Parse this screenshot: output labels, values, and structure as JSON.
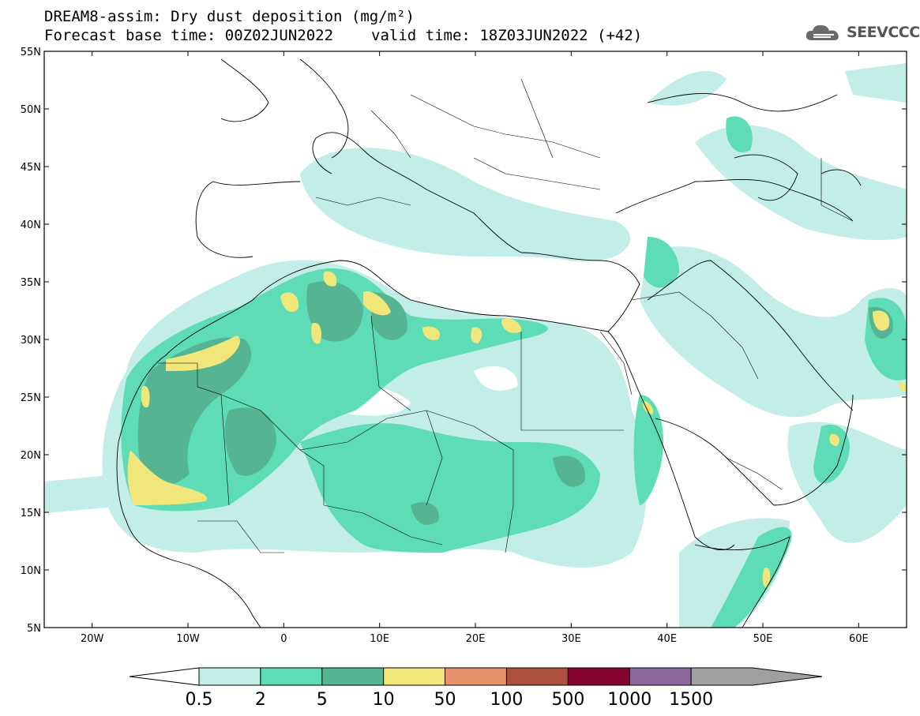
{
  "header": {
    "title_line1": "DREAM8-assim: Dry dust deposition (mg/m²)",
    "base_label": "Forecast base time: 00Z02JUN2022",
    "valid_label": "valid time: 18Z03JUN2022 (+42)"
  },
  "logo": {
    "text": "SEEVCCC",
    "icon": "cloud-logo-icon"
  },
  "map": {
    "projection": "lat-lon",
    "lon_range": [
      -25,
      65
    ],
    "lat_range": [
      5,
      55
    ],
    "lat_ticks": [
      "55N",
      "50N",
      "45N",
      "40N",
      "35N",
      "30N",
      "25N",
      "20N",
      "15N",
      "10N",
      "5N"
    ],
    "lon_ticks": [
      "20W",
      "10W",
      "0",
      "10E",
      "20E",
      "30E",
      "40E",
      "50E",
      "60E"
    ]
  },
  "colorbar": {
    "labels": [
      "0.5",
      "2",
      "5",
      "10",
      "50",
      "100",
      "500",
      "1000",
      "1500"
    ],
    "colors": [
      "#c3eee8",
      "#5ddcb5",
      "#55b592",
      "#f0e67a",
      "#e8926c",
      "#ae5040",
      "#840530",
      "#8c6aa0",
      "#a0a0a0"
    ],
    "under_color": "#ffffff",
    "over_color": "#a0a0a0"
  },
  "dust_colors": {
    "level_0_5": "#c3eee8",
    "level_2": "#5ddcb5",
    "level_5": "#55b592",
    "level_10": "#f0e67a"
  }
}
